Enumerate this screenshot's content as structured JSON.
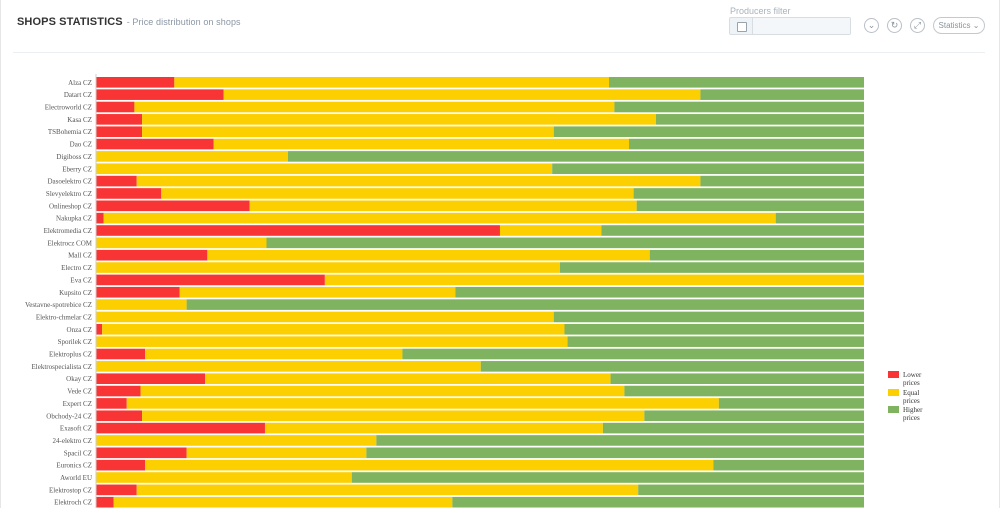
{
  "header": {
    "title": "SHOPS STATISTICS",
    "subtitle": "- Price distribution on shops"
  },
  "filter": {
    "label": "Producers filter",
    "value": ""
  },
  "toolbar": {
    "collapse_icon": "chevron-down-icon",
    "refresh_icon": "refresh-icon",
    "expand_icon": "expand-icon",
    "statistics_label": "Statistics"
  },
  "chart_data": {
    "type": "bar",
    "orientation": "horizontal",
    "stacked": "percent",
    "title": "",
    "xlabel": "",
    "ylabel": "",
    "xlim": [
      0,
      100
    ],
    "grid": false,
    "legend_position": "right",
    "categories": [
      "Alza CZ",
      "Datart CZ",
      "Electroworld CZ",
      "Kasa CZ",
      "TSBohemia CZ",
      "Dao CZ",
      "Digiboss CZ",
      "Eberry CZ",
      "Dasoelektro CZ",
      "Slevyelektro CZ",
      "Onlineshop CZ",
      "Nakupka CZ",
      "Elektromedia CZ",
      "Elektrocz COM",
      "Mall CZ",
      "Electro CZ",
      "Eva CZ",
      "Kupsito CZ",
      "Vestavne-spotrebice CZ",
      "Elektro-chmelar CZ",
      "Onza CZ",
      "Sporilek CZ",
      "Elektroplus CZ",
      "Elektrospecialista CZ",
      "Okay CZ",
      "Vede CZ",
      "Expert CZ",
      "Obchody-24 CZ",
      "Exasoft CZ",
      "24-elektro CZ",
      "Spacil CZ",
      "Euronics CZ",
      "Aworld EU",
      "Elektrostop CZ",
      "Elektroch CZ"
    ],
    "series": [
      {
        "name": "Lower prices",
        "color": "#f93434",
        "values": [
          10.2,
          16.6,
          5.0,
          6.0,
          6.0,
          15.3,
          0,
          0,
          5.3,
          8.5,
          20.0,
          1.0,
          52.6,
          0,
          14.5,
          0,
          29.8,
          10.9,
          0,
          0,
          0.8,
          0,
          6.4,
          0,
          14.2,
          5.8,
          4.0,
          6.0,
          22.0,
          0,
          11.8,
          6.4,
          0,
          5.3,
          2.3
        ]
      },
      {
        "name": "Equal prices",
        "color": "#fbcf00",
        "values": [
          56.6,
          62.1,
          62.5,
          66.9,
          53.6,
          54.1,
          25.0,
          59.4,
          73.4,
          61.5,
          50.4,
          87.5,
          13.2,
          22.2,
          57.6,
          60.4,
          70.2,
          35.9,
          11.8,
          59.6,
          60.2,
          61.4,
          33.5,
          50.1,
          52.8,
          63.0,
          77.1,
          65.4,
          44.0,
          36.5,
          23.4,
          74.0,
          33.3,
          65.3,
          44.1
        ]
      },
      {
        "name": "Higher prices",
        "color": "#7fb35f",
        "values": [
          33.2,
          21.3,
          32.5,
          27.1,
          40.4,
          30.6,
          75.0,
          40.6,
          21.3,
          30.0,
          29.6,
          11.5,
          34.2,
          77.8,
          27.9,
          39.6,
          0,
          53.2,
          88.2,
          40.4,
          39.0,
          38.6,
          60.1,
          49.9,
          33.0,
          31.2,
          18.9,
          28.6,
          34.0,
          63.5,
          64.8,
          19.6,
          66.7,
          29.4,
          53.6
        ]
      }
    ]
  }
}
